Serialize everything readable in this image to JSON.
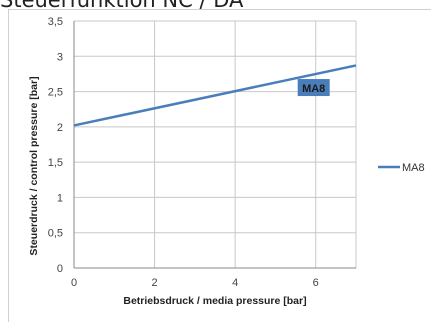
{
  "title": "Steuerfunktion NC / DA",
  "chart_data": {
    "type": "line",
    "xlabel": "Betriebsdruck / media pressure [bar]",
    "ylabel": "Steuerdruck / control pressure [bar]",
    "xlim": [
      0,
      7
    ],
    "ylim": [
      0,
      3.5
    ],
    "x_ticks": [
      0,
      2,
      4,
      6
    ],
    "y_ticks": [
      0,
      0.5,
      1,
      1.5,
      2,
      2.5,
      3,
      3.5
    ],
    "x_tick_labels": [
      "0",
      "2",
      "4",
      "6"
    ],
    "y_tick_labels": [
      "0",
      "0,5",
      "1",
      "1,5",
      "2",
      "2,5",
      "3",
      "3,5"
    ],
    "grid": true,
    "legend_position": "right",
    "series": [
      {
        "name": "MA8",
        "color": "#4a7ebb",
        "x": [
          0,
          7
        ],
        "y": [
          2.02,
          2.87
        ]
      }
    ],
    "annotations": [
      {
        "text": "MA8",
        "x": 5.95,
        "y": 2.55,
        "background": "#4a7ebb"
      }
    ]
  }
}
